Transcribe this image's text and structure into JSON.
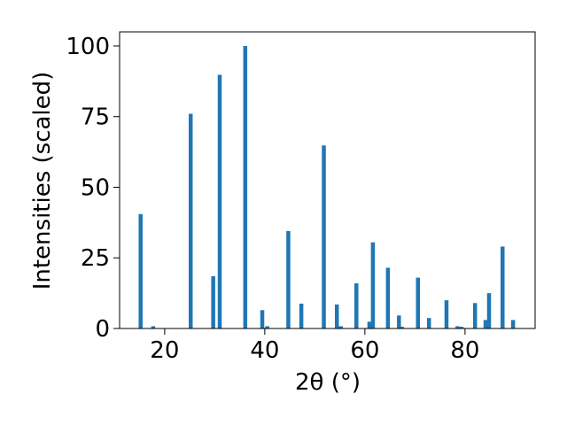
{
  "chart_data": {
    "type": "bar",
    "xlabel": "2θ (°)",
    "ylabel": "Intensities (scaled)",
    "xlim": [
      11,
      94
    ],
    "ylim": [
      0,
      105
    ],
    "xticks": [
      "20",
      "40",
      "60",
      "80"
    ],
    "yticks": [
      "0",
      "25",
      "50",
      "75",
      "100"
    ],
    "bar_color": "#1f77b4",
    "grid": false,
    "peaks": [
      {
        "x": 15.2,
        "y": 40.5
      },
      {
        "x": 17.7,
        "y": 0.8
      },
      {
        "x": 25.2,
        "y": 76.0
      },
      {
        "x": 29.7,
        "y": 18.5
      },
      {
        "x": 31.0,
        "y": 89.8
      },
      {
        "x": 36.1,
        "y": 100.0
      },
      {
        "x": 39.5,
        "y": 6.5
      },
      {
        "x": 40.5,
        "y": 0.8
      },
      {
        "x": 44.7,
        "y": 34.5
      },
      {
        "x": 47.3,
        "y": 8.8
      },
      {
        "x": 51.8,
        "y": 64.8
      },
      {
        "x": 54.4,
        "y": 8.5
      },
      {
        "x": 55.2,
        "y": 0.8
      },
      {
        "x": 58.3,
        "y": 16.0
      },
      {
        "x": 60.9,
        "y": 2.4
      },
      {
        "x": 61.6,
        "y": 30.5
      },
      {
        "x": 64.6,
        "y": 21.5
      },
      {
        "x": 66.8,
        "y": 4.6
      },
      {
        "x": 67.4,
        "y": 0.6
      },
      {
        "x": 70.6,
        "y": 18.0
      },
      {
        "x": 72.8,
        "y": 3.7
      },
      {
        "x": 76.3,
        "y": 10.0
      },
      {
        "x": 78.5,
        "y": 0.8
      },
      {
        "x": 79.3,
        "y": 0.6
      },
      {
        "x": 82.0,
        "y": 9.0
      },
      {
        "x": 84.1,
        "y": 3.0
      },
      {
        "x": 84.8,
        "y": 12.5
      },
      {
        "x": 87.5,
        "y": 29.0
      },
      {
        "x": 89.6,
        "y": 3.0
      }
    ]
  }
}
